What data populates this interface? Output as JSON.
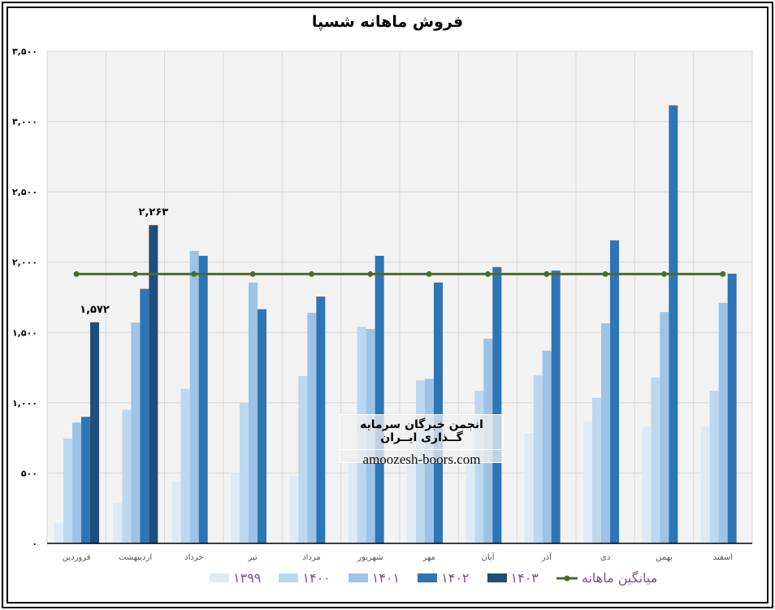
{
  "chart_data": {
    "type": "bar",
    "title": "فروش ماهانه شسپا",
    "categories": [
      "فروردین",
      "اردیبهشت",
      "خرداد",
      "تیر",
      "مرداد",
      "شهریور",
      "مهر",
      "آبان",
      "آذر",
      "دی",
      "بهمن",
      "اسفند"
    ],
    "series": [
      {
        "name": "۱۳۹۹",
        "color": "#deebf7",
        "values": [
          150,
          290,
          440,
          500,
          480,
          600,
          620,
          640,
          785,
          865,
          830,
          830
        ]
      },
      {
        "name": "۱۴۰۰",
        "color": "#bdd7ee",
        "values": [
          745,
          950,
          1100,
          1000,
          1190,
          1540,
          1160,
          1085,
          1195,
          1035,
          1180,
          1085
        ]
      },
      {
        "name": "۱۴۰۱",
        "color": "#9dc3e6",
        "values": [
          860,
          1570,
          2080,
          1855,
          1640,
          1525,
          1170,
          1455,
          1370,
          1565,
          1645,
          1710
        ]
      },
      {
        "name": "۱۴۰۲",
        "color": "#2e75b6",
        "values": [
          900,
          1810,
          2045,
          1665,
          1755,
          2045,
          1855,
          1965,
          1940,
          2155,
          3115,
          1918
        ]
      },
      {
        "name": "۱۴۰۳",
        "color": "#1f4e79",
        "values": [
          1572,
          2263,
          null,
          null,
          null,
          null,
          null,
          null,
          null,
          null,
          null,
          null
        ]
      }
    ],
    "line_series": {
      "name": "میانگین ماهانه",
      "color": "#4a6b2a",
      "value": 1915
    },
    "data_labels": [
      {
        "series": "۱۴۰۳",
        "category": "فروردین",
        "text": "۱,۵۷۲"
      },
      {
        "series": "۱۴۰۳",
        "category": "اردیبهشت",
        "text": "۲,۲۶۳"
      }
    ],
    "yticks": [
      0,
      500,
      1000,
      1500,
      2000,
      2500,
      3000,
      3500
    ],
    "ytick_labels": [
      "۰",
      "۵۰۰",
      "۱,۰۰۰",
      "۱,۵۰۰",
      "۲,۰۰۰",
      "۲,۵۰۰",
      "۳,۰۰۰",
      "۳,۵۰۰"
    ],
    "ylim": [
      0,
      3500
    ],
    "grid": true,
    "legend_position": "bottom",
    "xlabel": "",
    "ylabel": ""
  },
  "watermark": {
    "line1": "انجمن خبرگان سرمایه گــذاری ایــران",
    "line2": "amoozesh-boors.com"
  }
}
